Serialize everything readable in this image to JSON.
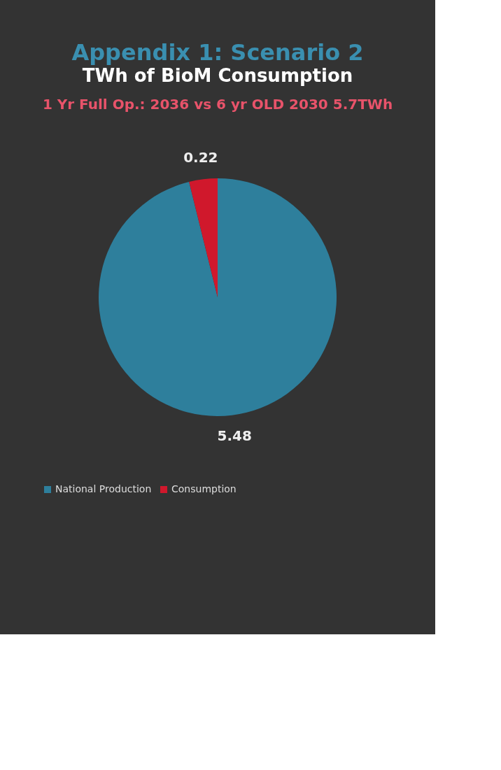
{
  "chart_data": {
    "type": "pie",
    "title": "Appendix 1: Scenario 2",
    "subtitle": "TWh of BioM Consumption",
    "annotations": [
      "1 Yr Full Op.: 2036 vs 6 yr OLD 2030 5.7TWh"
    ],
    "categories": [
      "National Production",
      "Consumption"
    ],
    "values": [
      5.48,
      0.22
    ],
    "colors": [
      "#2e7f9c",
      "#d0182c"
    ],
    "data_labels": true,
    "legend": "bottom"
  }
}
